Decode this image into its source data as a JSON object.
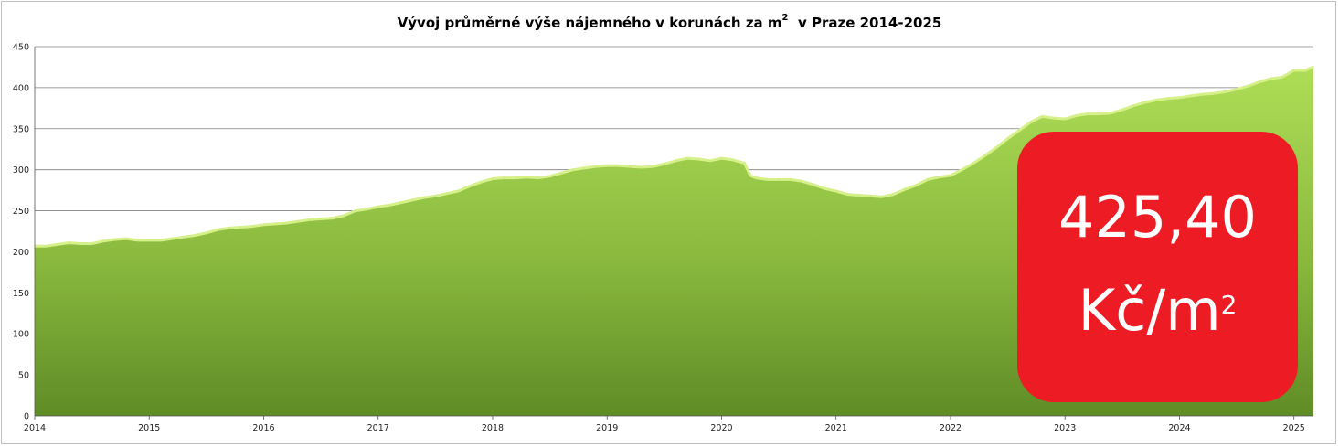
{
  "title": {
    "main": "Vývoj průměrné výše nájemného v korunách za m",
    "sup": "2",
    "tail": "v Praze 2014-2025"
  },
  "badge": {
    "value": "425,40",
    "unit": "Kč/m",
    "unit_sup": "2"
  },
  "colors": {
    "area_top": "#a9d651",
    "area_bottom": "#5f8c26",
    "badge": "#ed1c24",
    "grid": "#7f7f7f"
  },
  "chart_data": {
    "type": "area",
    "title": "Vývoj průměrné výše nájemného v korunách za m2 v Praze 2014-2025",
    "xlabel": "",
    "ylabel": "",
    "ylim": [
      0,
      450
    ],
    "y_ticks": [
      0,
      50,
      100,
      150,
      200,
      250,
      300,
      350,
      400,
      450
    ],
    "x_tick_labels": [
      "2014",
      "2015",
      "2016",
      "2017",
      "2018",
      "2019",
      "2020",
      "2021",
      "2022",
      "2023",
      "2024",
      "2025"
    ],
    "x_tick_years": [
      2014,
      2015,
      2016,
      2017,
      2018,
      2019,
      2020,
      2021,
      2022,
      2023,
      2024,
      2025
    ],
    "grid": true,
    "legend": "none",
    "series": [
      {
        "x": [
          2014.0,
          2014.1,
          2014.2,
          2014.3,
          2014.4,
          2014.5,
          2014.6,
          2014.7,
          2014.8,
          2014.9,
          2015.0,
          2015.1,
          2015.2,
          2015.3,
          2015.4,
          2015.5,
          2015.6,
          2015.7,
          2015.8,
          2015.9,
          2016.0,
          2016.1,
          2016.2,
          2016.3,
          2016.4,
          2016.5,
          2016.6,
          2016.7,
          2016.8,
          2016.9,
          2017.0,
          2017.1,
          2017.2,
          2017.3,
          2017.4,
          2017.5,
          2017.6,
          2017.7,
          2017.8,
          2017.9,
          2018.0,
          2018.1,
          2018.2,
          2018.3,
          2018.4,
          2018.5,
          2018.6,
          2018.7,
          2018.8,
          2018.9,
          2019.0,
          2019.1,
          2019.2,
          2019.3,
          2019.4,
          2019.5,
          2019.6,
          2019.7,
          2019.8,
          2019.9,
          2020.0,
          2020.1,
          2020.2,
          2020.25,
          2020.3,
          2020.4,
          2020.5,
          2020.6,
          2020.7,
          2020.8,
          2020.9,
          2021.0,
          2021.1,
          2021.2,
          2021.3,
          2021.4,
          2021.5,
          2021.6,
          2021.7,
          2021.8,
          2021.9,
          2022.0,
          2022.1,
          2022.2,
          2022.3,
          2022.4,
          2022.5,
          2022.6,
          2022.7,
          2022.8,
          2022.9,
          2023.0,
          2023.1,
          2023.2,
          2023.3,
          2023.4,
          2023.5,
          2023.6,
          2023.7,
          2023.8,
          2023.9,
          2024.0,
          2024.1,
          2024.2,
          2024.3,
          2024.4,
          2024.5,
          2024.6,
          2024.7,
          2024.8,
          2024.9,
          2025.0,
          2025.1,
          2025.17
        ],
        "values": [
          207,
          207,
          209,
          211,
          210,
          210,
          213,
          215,
          216,
          214,
          214,
          214,
          216,
          218,
          220,
          223,
          227,
          229,
          230,
          231,
          233,
          234,
          235,
          237,
          239,
          240,
          241,
          244,
          250,
          252,
          255,
          257,
          260,
          263,
          266,
          268,
          271,
          274,
          280,
          285,
          289,
          290,
          290,
          291,
          290,
          292,
          296,
          300,
          302,
          304,
          305,
          305,
          304,
          303,
          304,
          307,
          311,
          314,
          313,
          311,
          314,
          312,
          308,
          293,
          290,
          288,
          288,
          288,
          286,
          282,
          277,
          274,
          270,
          269,
          268,
          267,
          270,
          276,
          281,
          288,
          291,
          293,
          300,
          308,
          317,
          327,
          338,
          348,
          358,
          365,
          363,
          362,
          366,
          368,
          368,
          369,
          373,
          378,
          382,
          385,
          387,
          388,
          390,
          392,
          393,
          395,
          398,
          402,
          407,
          411,
          413,
          421,
          421,
          425.4
        ]
      }
    ]
  }
}
